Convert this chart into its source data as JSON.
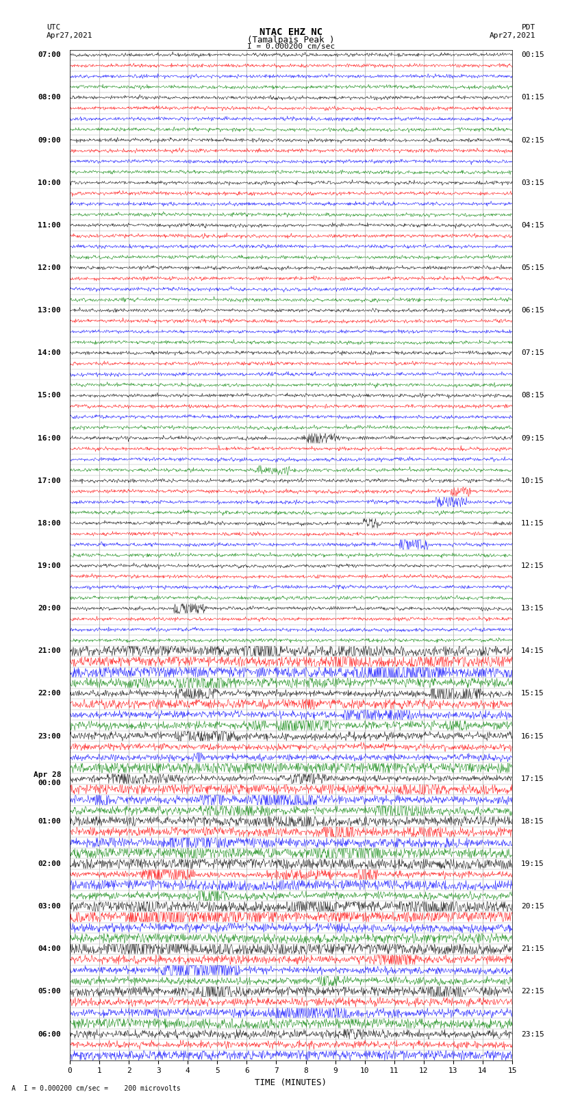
{
  "title_line1": "NTAC EHZ NC",
  "title_line2": "(Tamalpais Peak )",
  "scale_label": "I = 0.000200 cm/sec",
  "utc_label": "UTC\nApr27,2021",
  "pdt_label": "PDT\nApr27,2021",
  "xlabel": "TIME (MINUTES)",
  "bottom_label": "A  I = 0.000200 cm/sec =    200 microvolts",
  "xmin": 0,
  "xmax": 15,
  "xticks": [
    0,
    1,
    2,
    3,
    4,
    5,
    6,
    7,
    8,
    9,
    10,
    11,
    12,
    13,
    14,
    15
  ],
  "left_times": [
    "07:00",
    "",
    "",
    "",
    "08:00",
    "",
    "",
    "",
    "09:00",
    "",
    "",
    "",
    "10:00",
    "",
    "",
    "",
    "11:00",
    "",
    "",
    "",
    "12:00",
    "",
    "",
    "",
    "13:00",
    "",
    "",
    "",
    "14:00",
    "",
    "",
    "",
    "15:00",
    "",
    "",
    "",
    "16:00",
    "",
    "",
    "",
    "17:00",
    "",
    "",
    "",
    "18:00",
    "",
    "",
    "",
    "19:00",
    "",
    "",
    "",
    "20:00",
    "",
    "",
    "",
    "21:00",
    "",
    "",
    "",
    "22:00",
    "",
    "",
    "",
    "23:00",
    "",
    "",
    "",
    "Apr 28\n00:00",
    "",
    "",
    "",
    "01:00",
    "",
    "",
    "",
    "02:00",
    "",
    "",
    "",
    "03:00",
    "",
    "",
    "",
    "04:00",
    "",
    "",
    "",
    "05:00",
    "",
    "",
    "",
    "06:00",
    "",
    ""
  ],
  "right_times": [
    "00:15",
    "",
    "",
    "",
    "01:15",
    "",
    "",
    "",
    "02:15",
    "",
    "",
    "",
    "03:15",
    "",
    "",
    "",
    "04:15",
    "",
    "",
    "",
    "05:15",
    "",
    "",
    "",
    "06:15",
    "",
    "",
    "",
    "07:15",
    "",
    "",
    "",
    "08:15",
    "",
    "",
    "",
    "09:15",
    "",
    "",
    "",
    "10:15",
    "",
    "",
    "",
    "11:15",
    "",
    "",
    "",
    "12:15",
    "",
    "",
    "",
    "13:15",
    "",
    "",
    "",
    "14:15",
    "",
    "",
    "",
    "15:15",
    "",
    "",
    "",
    "16:15",
    "",
    "",
    "",
    "17:15",
    "",
    "",
    "",
    "18:15",
    "",
    "",
    "",
    "19:15",
    "",
    "",
    "",
    "20:15",
    "",
    "",
    "",
    "21:15",
    "",
    "",
    "",
    "22:15",
    "",
    "",
    "",
    "23:15",
    "",
    ""
  ],
  "trace_colors": [
    "black",
    "red",
    "blue",
    "green"
  ],
  "n_rows": 95,
  "background_color": "white",
  "grid_color": "#aaaaaa",
  "noise_amplitude": 0.08,
  "title_fontsize": 10,
  "label_fontsize": 8,
  "tick_fontsize": 8
}
